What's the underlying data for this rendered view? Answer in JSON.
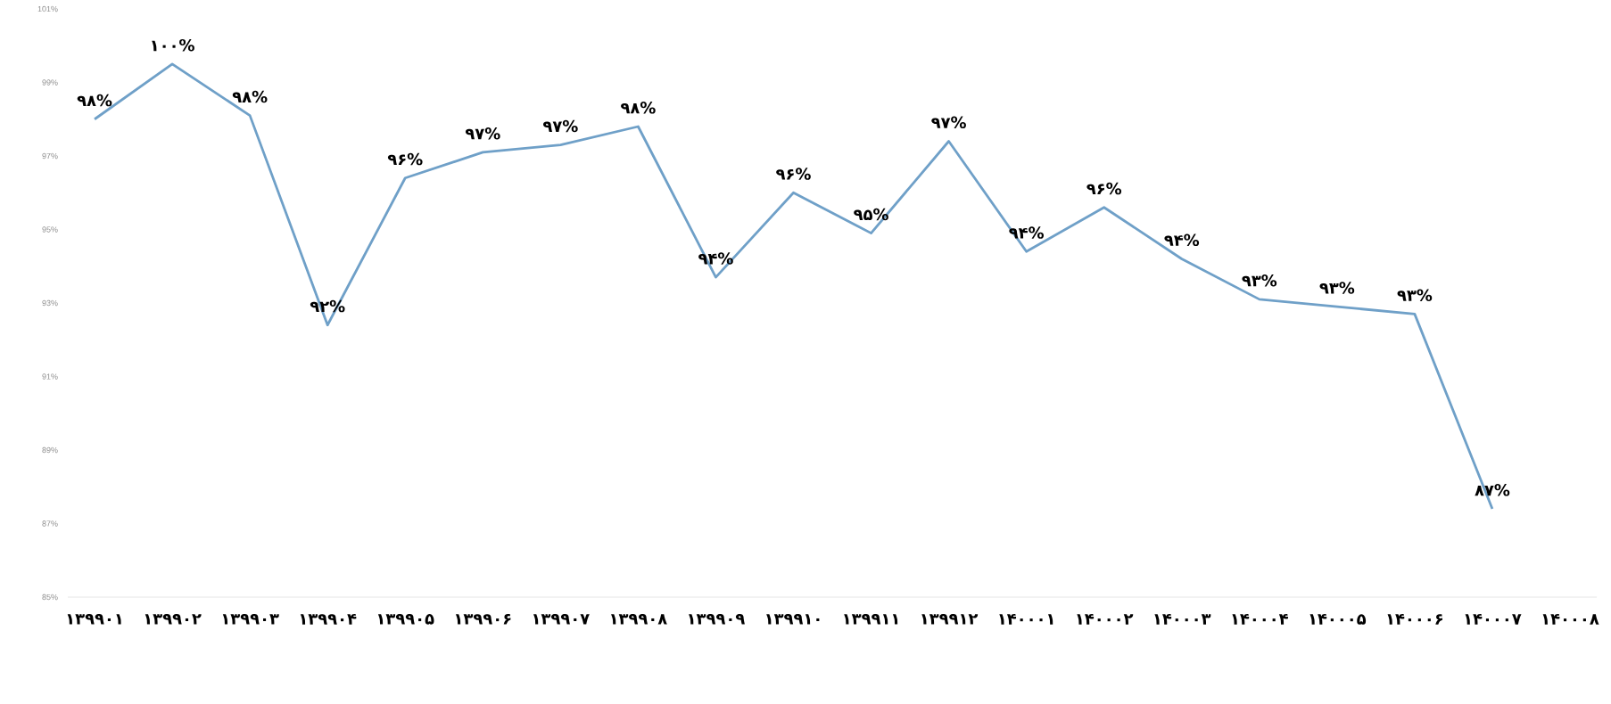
{
  "chart_data": {
    "type": "line",
    "categories": [
      "۱۳۹۹۰۱",
      "۱۳۹۹۰۲",
      "۱۳۹۹۰۳",
      "۱۳۹۹۰۴",
      "۱۳۹۹۰۵",
      "۱۳۹۹۰۶",
      "۱۳۹۹۰۷",
      "۱۳۹۹۰۸",
      "۱۳۹۹۰۹",
      "۱۳۹۹۱۰",
      "۱۳۹۹۱۱",
      "۱۳۹۹۱۲",
      "۱۴۰۰۰۱",
      "۱۴۰۰۰۲",
      "۱۴۰۰۰۳",
      "۱۴۰۰۰۴",
      "۱۴۰۰۰۵",
      "۱۴۰۰۰۶",
      "۱۴۰۰۰۷",
      "۱۴۰۰۰۸"
    ],
    "values": [
      98.0,
      99.5,
      98.1,
      92.4,
      96.4,
      97.1,
      97.3,
      97.8,
      93.7,
      96.0,
      94.9,
      97.4,
      94.4,
      95.6,
      94.2,
      93.1,
      92.9,
      92.7,
      87.4,
      null
    ],
    "value_labels": [
      "۹۸%",
      "۱۰۰%",
      "۹۸%",
      "۹۲%",
      "۹۶%",
      "۹۷%",
      "۹۷%",
      "۹۸%",
      "۹۴%",
      "۹۶%",
      "۹۵%",
      "۹۷%",
      "۹۴%",
      "۹۶%",
      "۹۴%",
      "۹۳%",
      "۹۳%",
      "۹۳%",
      "۸۷%",
      null
    ],
    "color": "#6fa0c8",
    "ylim": [
      85,
      101
    ],
    "yticks": [
      {
        "value": 85,
        "label": "85%"
      },
      {
        "value": 87,
        "label": "87%"
      },
      {
        "value": 89,
        "label": "89%"
      },
      {
        "value": 91,
        "label": "91%"
      },
      {
        "value": 93,
        "label": "93%"
      },
      {
        "value": 95,
        "label": "95%"
      },
      {
        "value": 97,
        "label": "97%"
      },
      {
        "value": 99,
        "label": "99%"
      },
      {
        "value": 101,
        "label": "101%"
      }
    ]
  }
}
